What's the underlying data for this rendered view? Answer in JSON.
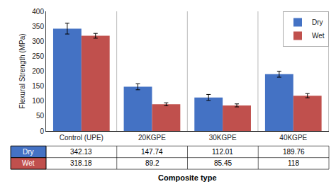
{
  "chart_data": {
    "type": "bar",
    "categories": [
      "Control (UPE)",
      "20KGPE",
      "30KGPE",
      "40KGPE"
    ],
    "series": [
      {
        "name": "Dry",
        "color": "#4472C4",
        "values": [
          342.13,
          147.74,
          112.01,
          189.76
        ],
        "errors": [
          18,
          10,
          10,
          10
        ]
      },
      {
        "name": "Wet",
        "color": "#C0504D",
        "values": [
          318.18,
          89.2,
          85.45,
          118
        ],
        "errors": [
          8,
          5,
          5,
          7
        ]
      }
    ],
    "ylabel": "Flexural Strength (MPa)",
    "xlabel": "Composite type",
    "ylim": [
      0,
      400
    ],
    "yticks": [
      0,
      50,
      100,
      150,
      200,
      250,
      300,
      350,
      400
    ],
    "grid": false,
    "legend": "upper right"
  }
}
